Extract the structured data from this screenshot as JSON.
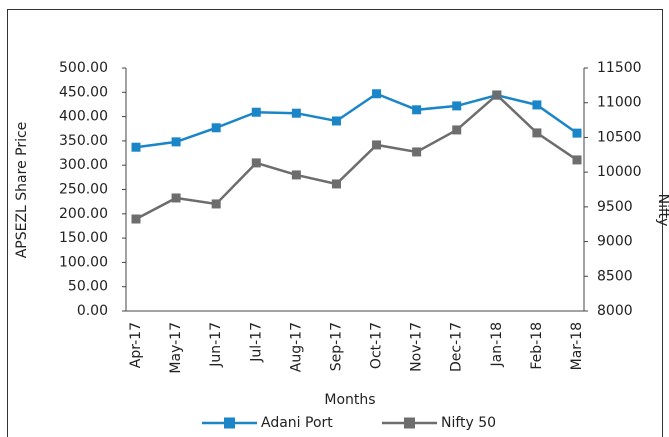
{
  "chart_data": {
    "type": "line",
    "categories": [
      "Apr-17",
      "May-17",
      "Jun-17",
      "Jul-17",
      "Aug-17",
      "Sep-17",
      "Oct-17",
      "Nov-17",
      "Dec-17",
      "Jan-18",
      "Feb-18",
      "Mar-18"
    ],
    "series": [
      {
        "name": "Adani Port",
        "color": "#1a86c8",
        "values": [
          337,
          348,
          377,
          409,
          407,
          391,
          447,
          414,
          422,
          444,
          424,
          366
        ]
      },
      {
        "name": "Nifty 50",
        "color": "#6d6d6d",
        "axis": "y2",
        "values": [
          9325,
          9628,
          9542,
          10133,
          9960,
          9830,
          10392,
          10291,
          10608,
          11112,
          10565,
          10176
        ]
      }
    ],
    "ylim": [
      0,
      500
    ],
    "yticks": [
      {
        "value": 0,
        "label": "0.00"
      },
      {
        "value": 50,
        "label": "50.00"
      },
      {
        "value": 100,
        "label": "100.00"
      },
      {
        "value": 150,
        "label": "150.00"
      },
      {
        "value": 200,
        "label": "200.00"
      },
      {
        "value": 250,
        "label": "250.00"
      },
      {
        "value": 300,
        "label": "300.00"
      },
      {
        "value": 350,
        "label": "350.00"
      },
      {
        "value": 400,
        "label": "400.00"
      },
      {
        "value": 450,
        "label": "450.00"
      },
      {
        "value": 500,
        "label": "500.00"
      }
    ],
    "y2lim": [
      8000,
      11500
    ],
    "y2ticks": [
      8000,
      8500,
      9000,
      9500,
      10000,
      10500,
      11000,
      11500
    ],
    "ylabel": "APSEZL Share Price",
    "y2label": "Nifty",
    "xlabel": "Months",
    "legend": "bottom"
  }
}
